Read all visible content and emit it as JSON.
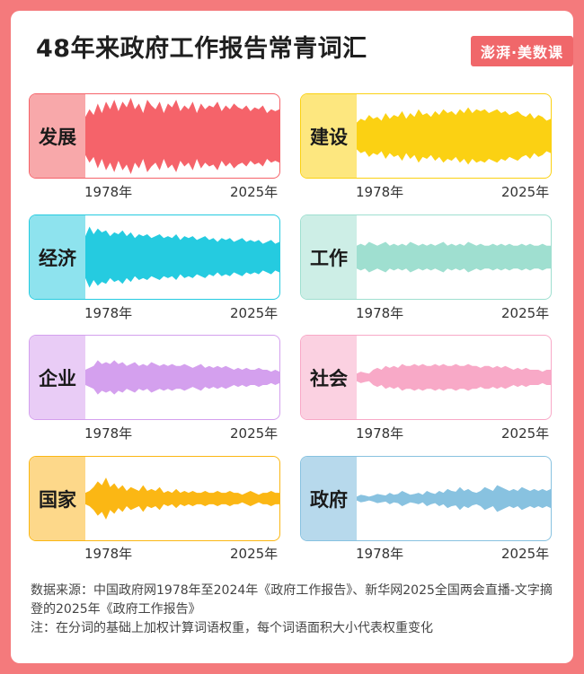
{
  "title": "48年来政府工作报告常青词汇",
  "brand": "澎湃·美数课",
  "year_start": "1978年",
  "year_end": "2025年",
  "chart_data": [
    {
      "type": "area",
      "word": "发展",
      "color": "#f5636a",
      "label_bg": "#f8a8aa",
      "x": [
        1978,
        2025
      ],
      "amplitude_profile": [
        0.5,
        0.7,
        0.55,
        0.85,
        0.6,
        0.9,
        0.7,
        0.95,
        0.65,
        0.9,
        0.75,
        1.0,
        0.7,
        0.85,
        0.6,
        0.95,
        0.8,
        0.7,
        0.9,
        0.6,
        0.85,
        0.75,
        0.95,
        0.65,
        0.8,
        0.7,
        0.9,
        0.6,
        0.85,
        0.7,
        0.8,
        0.75,
        0.9,
        0.65,
        0.8,
        0.7,
        0.85,
        0.75,
        0.7,
        0.8,
        0.65,
        0.75,
        0.7,
        0.8,
        0.6,
        0.7,
        0.65,
        0.7
      ]
    },
    {
      "type": "area",
      "word": "建设",
      "color": "#fbd113",
      "label_bg": "#fde77f",
      "x": [
        1978,
        2025
      ],
      "amplitude_profile": [
        0.35,
        0.45,
        0.4,
        0.55,
        0.45,
        0.5,
        0.4,
        0.6,
        0.45,
        0.55,
        0.5,
        0.65,
        0.45,
        0.6,
        0.5,
        0.7,
        0.55,
        0.6,
        0.5,
        0.65,
        0.55,
        0.7,
        0.6,
        0.65,
        0.55,
        0.7,
        0.6,
        0.75,
        0.6,
        0.7,
        0.65,
        0.7,
        0.6,
        0.65,
        0.7,
        0.6,
        0.65,
        0.55,
        0.6,
        0.65,
        0.55,
        0.5,
        0.6,
        0.45,
        0.55,
        0.5,
        0.4,
        0.45
      ]
    },
    {
      "type": "area",
      "word": "经济",
      "color": "#25cbe0",
      "label_bg": "#8ee3ee",
      "x": [
        1978,
        2025
      ],
      "amplitude_profile": [
        0.55,
        0.8,
        0.6,
        0.75,
        0.65,
        0.7,
        0.55,
        0.65,
        0.6,
        0.7,
        0.55,
        0.65,
        0.5,
        0.6,
        0.55,
        0.6,
        0.5,
        0.55,
        0.6,
        0.5,
        0.55,
        0.5,
        0.6,
        0.45,
        0.55,
        0.5,
        0.55,
        0.45,
        0.5,
        0.55,
        0.45,
        0.5,
        0.4,
        0.5,
        0.45,
        0.5,
        0.4,
        0.45,
        0.5,
        0.4,
        0.45,
        0.4,
        0.45,
        0.35,
        0.4,
        0.45,
        0.35,
        0.4
      ]
    },
    {
      "type": "area",
      "word": "工作",
      "color": "#9fdfd0",
      "label_bg": "#cdeee6",
      "x": [
        1978,
        2025
      ],
      "amplitude_profile": [
        0.3,
        0.35,
        0.3,
        0.4,
        0.35,
        0.3,
        0.35,
        0.4,
        0.3,
        0.35,
        0.3,
        0.35,
        0.3,
        0.4,
        0.35,
        0.3,
        0.35,
        0.3,
        0.35,
        0.3,
        0.35,
        0.4,
        0.3,
        0.35,
        0.3,
        0.35,
        0.3,
        0.4,
        0.35,
        0.3,
        0.35,
        0.3,
        0.3,
        0.35,
        0.3,
        0.35,
        0.3,
        0.35,
        0.3,
        0.3,
        0.35,
        0.3,
        0.35,
        0.3,
        0.3,
        0.35,
        0.3,
        0.3
      ]
    },
    {
      "type": "area",
      "word": "企业",
      "color": "#d4a0ee",
      "label_bg": "#e9ccf6",
      "x": [
        1978,
        2025
      ],
      "amplitude_profile": [
        0.2,
        0.25,
        0.3,
        0.45,
        0.35,
        0.4,
        0.35,
        0.45,
        0.35,
        0.4,
        0.3,
        0.35,
        0.4,
        0.3,
        0.35,
        0.3,
        0.4,
        0.35,
        0.3,
        0.35,
        0.3,
        0.35,
        0.3,
        0.3,
        0.35,
        0.3,
        0.25,
        0.3,
        0.35,
        0.25,
        0.3,
        0.25,
        0.3,
        0.25,
        0.3,
        0.25,
        0.2,
        0.25,
        0.2,
        0.25,
        0.2,
        0.2,
        0.25,
        0.2,
        0.2,
        0.15,
        0.2,
        0.15
      ]
    },
    {
      "type": "area",
      "word": "社会",
      "color": "#f8a9c7",
      "label_bg": "#fbd1e1",
      "x": [
        1978,
        2025
      ],
      "amplitude_profile": [
        0.1,
        0.15,
        0.12,
        0.1,
        0.2,
        0.25,
        0.2,
        0.3,
        0.25,
        0.3,
        0.25,
        0.35,
        0.3,
        0.3,
        0.35,
        0.3,
        0.35,
        0.3,
        0.3,
        0.35,
        0.3,
        0.35,
        0.3,
        0.3,
        0.35,
        0.3,
        0.3,
        0.35,
        0.3,
        0.3,
        0.25,
        0.3,
        0.3,
        0.25,
        0.3,
        0.25,
        0.3,
        0.25,
        0.2,
        0.25,
        0.2,
        0.25,
        0.2,
        0.2,
        0.2,
        0.15,
        0.2,
        0.2
      ]
    },
    {
      "type": "area",
      "word": "国家",
      "color": "#fbb714",
      "label_bg": "#fdd88a",
      "x": [
        1978,
        2025
      ],
      "amplitude_profile": [
        0.15,
        0.2,
        0.3,
        0.45,
        0.35,
        0.55,
        0.3,
        0.4,
        0.25,
        0.35,
        0.2,
        0.3,
        0.25,
        0.2,
        0.35,
        0.2,
        0.25,
        0.2,
        0.3,
        0.15,
        0.2,
        0.15,
        0.25,
        0.15,
        0.2,
        0.15,
        0.2,
        0.15,
        0.15,
        0.2,
        0.15,
        0.15,
        0.2,
        0.15,
        0.15,
        0.2,
        0.15,
        0.15,
        0.1,
        0.15,
        0.2,
        0.15,
        0.1,
        0.15,
        0.15,
        0.2,
        0.15,
        0.15
      ]
    },
    {
      "type": "area",
      "word": "政府",
      "color": "#88c2e0",
      "label_bg": "#b7d9ec",
      "x": [
        1978,
        2025
      ],
      "amplitude_profile": [
        0.05,
        0.1,
        0.08,
        0.05,
        0.08,
        0.12,
        0.1,
        0.08,
        0.15,
        0.1,
        0.12,
        0.2,
        0.15,
        0.1,
        0.12,
        0.15,
        0.1,
        0.2,
        0.15,
        0.12,
        0.2,
        0.15,
        0.25,
        0.2,
        0.18,
        0.3,
        0.2,
        0.25,
        0.18,
        0.15,
        0.2,
        0.3,
        0.25,
        0.2,
        0.35,
        0.3,
        0.25,
        0.2,
        0.25,
        0.2,
        0.3,
        0.25,
        0.2,
        0.25,
        0.2,
        0.25,
        0.2,
        0.25
      ]
    }
  ],
  "footer": {
    "source": "数据来源：中国政府网1978年至2024年《政府工作报告》、新华网2025全国两会直播-文字摘登的2025年《政府工作报告》",
    "note": "注：在分词的基础上加权计算词语权重，每个词语面积大小代表权重变化"
  }
}
